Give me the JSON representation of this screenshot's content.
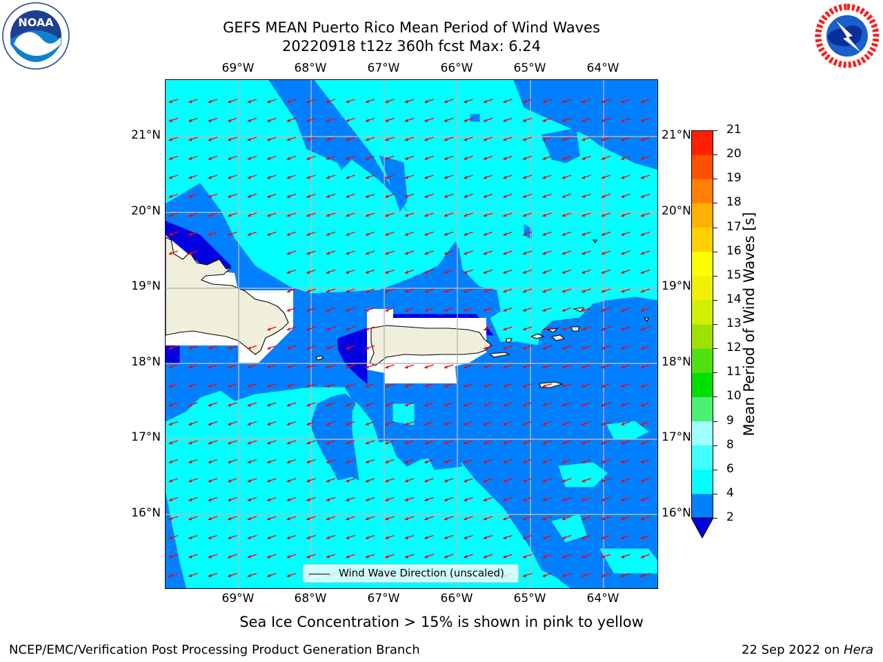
{
  "title": {
    "line1": "GEFS MEAN Puerto Rico Mean Period of Wind Waves",
    "line2": "20220918 t12z 360h fcst   Max: 6.24"
  },
  "lon_labels": [
    "69°W",
    "68°W",
    "67°W",
    "66°W",
    "65°W",
    "64°W"
  ],
  "lat_labels": [
    "21°N",
    "20°N",
    "19°N",
    "18°N",
    "17°N",
    "16°N"
  ],
  "legend": {
    "label": "Wind Wave Direction (unscaled)"
  },
  "colorbar": {
    "label": "Mean Period of Wind Waves [s]",
    "ticks": [
      "2",
      "4",
      "6",
      "8",
      "9",
      "10",
      "11",
      "12",
      "13",
      "14",
      "15",
      "16",
      "17",
      "18",
      "19",
      "20",
      "21"
    ],
    "colors": [
      "#0080ff",
      "#00ffff",
      "#40ffff",
      "#a0ffff",
      "#4cf070",
      "#00e000",
      "#50e010",
      "#a0e000",
      "#d0f000",
      "#f0f000",
      "#ffff00",
      "#ffd000",
      "#ffb000",
      "#ff8000",
      "#ff5000",
      "#ff2000",
      "#ff0000"
    ],
    "under_color": "#0000e0"
  },
  "fill_colors": {
    "water_2_4": "#0080ff",
    "water_4_6": "#00ffff",
    "water_under_2": "#0000e0",
    "land": "#efefdc",
    "arrow": "#ff0000"
  },
  "subtitle": "Sea Ice Concentration > 15% is shown in pink to yellow",
  "footer": {
    "left": "NCEP/EMC/Verification Post Processing Product Generation Branch",
    "right_date": "22 Sep 2022 on ",
    "right_machine": "Hera"
  },
  "logos": {
    "noaa_text": "NOAA",
    "noaa_ring": "NATIONAL OCEANIC AND ATMOSPHERIC ADMINISTRATION · U.S. DEPARTMENT OF COMMERCE",
    "nws_ring": "NATIONAL WEATHER SERVICE"
  }
}
